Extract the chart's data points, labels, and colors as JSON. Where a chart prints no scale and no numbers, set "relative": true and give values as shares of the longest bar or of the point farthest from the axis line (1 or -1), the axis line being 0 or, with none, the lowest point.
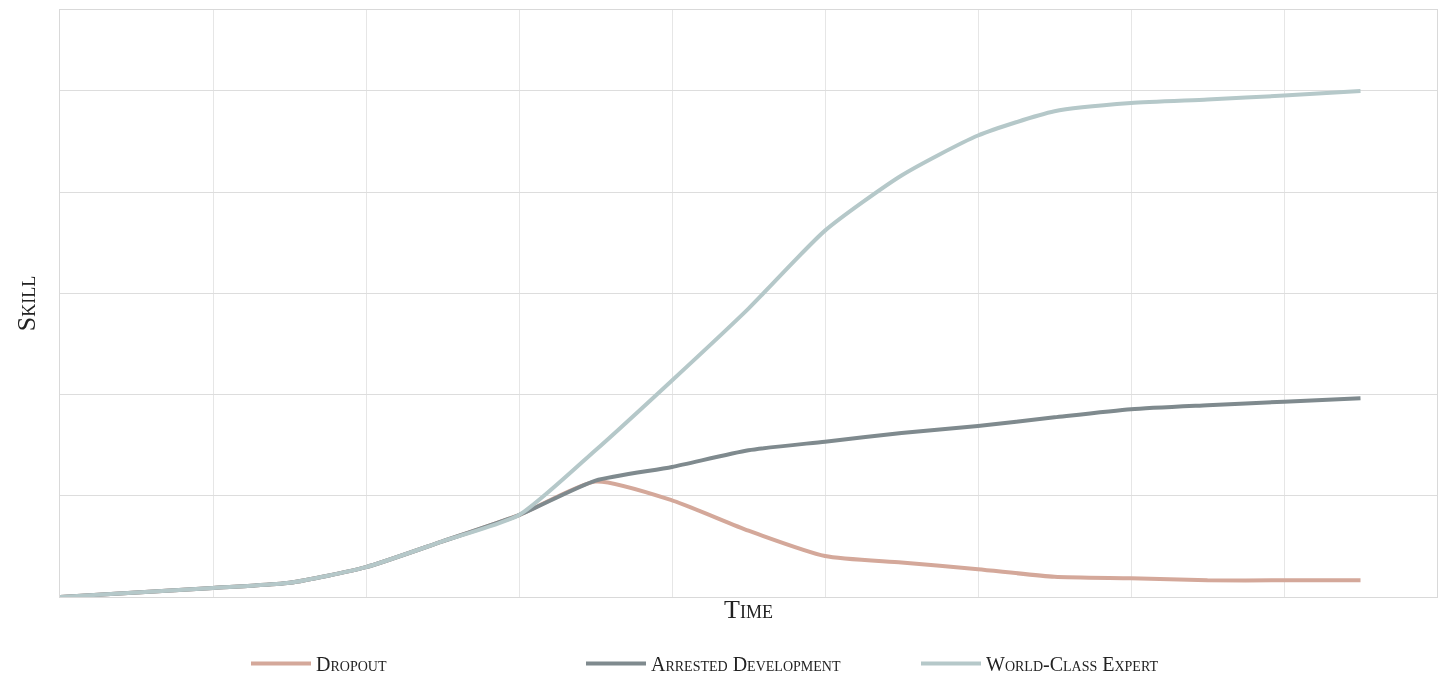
{
  "chart_data": {
    "type": "line",
    "relative": true,
    "xlabel": "Time",
    "ylabel": "Skill",
    "categories": [
      null,
      null,
      null,
      null,
      null,
      null,
      null,
      null,
      null,
      null,
      null,
      null,
      null,
      null,
      null,
      null,
      null,
      null
    ],
    "series": [
      {
        "name": "Dropout",
        "color": "#d4a89a",
        "values": [
          0,
          0.009,
          0.018,
          0.028,
          0.059,
          0.11,
          0.162,
          0.228,
          0.191,
          0.131,
          0.081,
          0.068,
          0.055,
          0.04,
          0.037,
          0.033,
          0.033,
          0.033
        ]
      },
      {
        "name": "Arrested Development",
        "color": "#7f8a8e",
        "values": [
          0,
          0.009,
          0.018,
          0.028,
          0.059,
          0.11,
          0.162,
          0.23,
          0.257,
          0.29,
          0.307,
          0.324,
          0.338,
          0.355,
          0.371,
          0.379,
          0.386,
          0.393
        ]
      },
      {
        "name": "World-Class Expert",
        "color": "#b5c8c9",
        "values": [
          0,
          0.009,
          0.018,
          0.028,
          0.059,
          0.11,
          0.162,
          0.29,
          0.428,
          0.57,
          0.724,
          0.833,
          0.912,
          0.96,
          0.976,
          0.983,
          0.991,
          1
        ]
      }
    ],
    "grid": true,
    "legend": "bottom",
    "marker": "none",
    "line_style": "solid"
  }
}
